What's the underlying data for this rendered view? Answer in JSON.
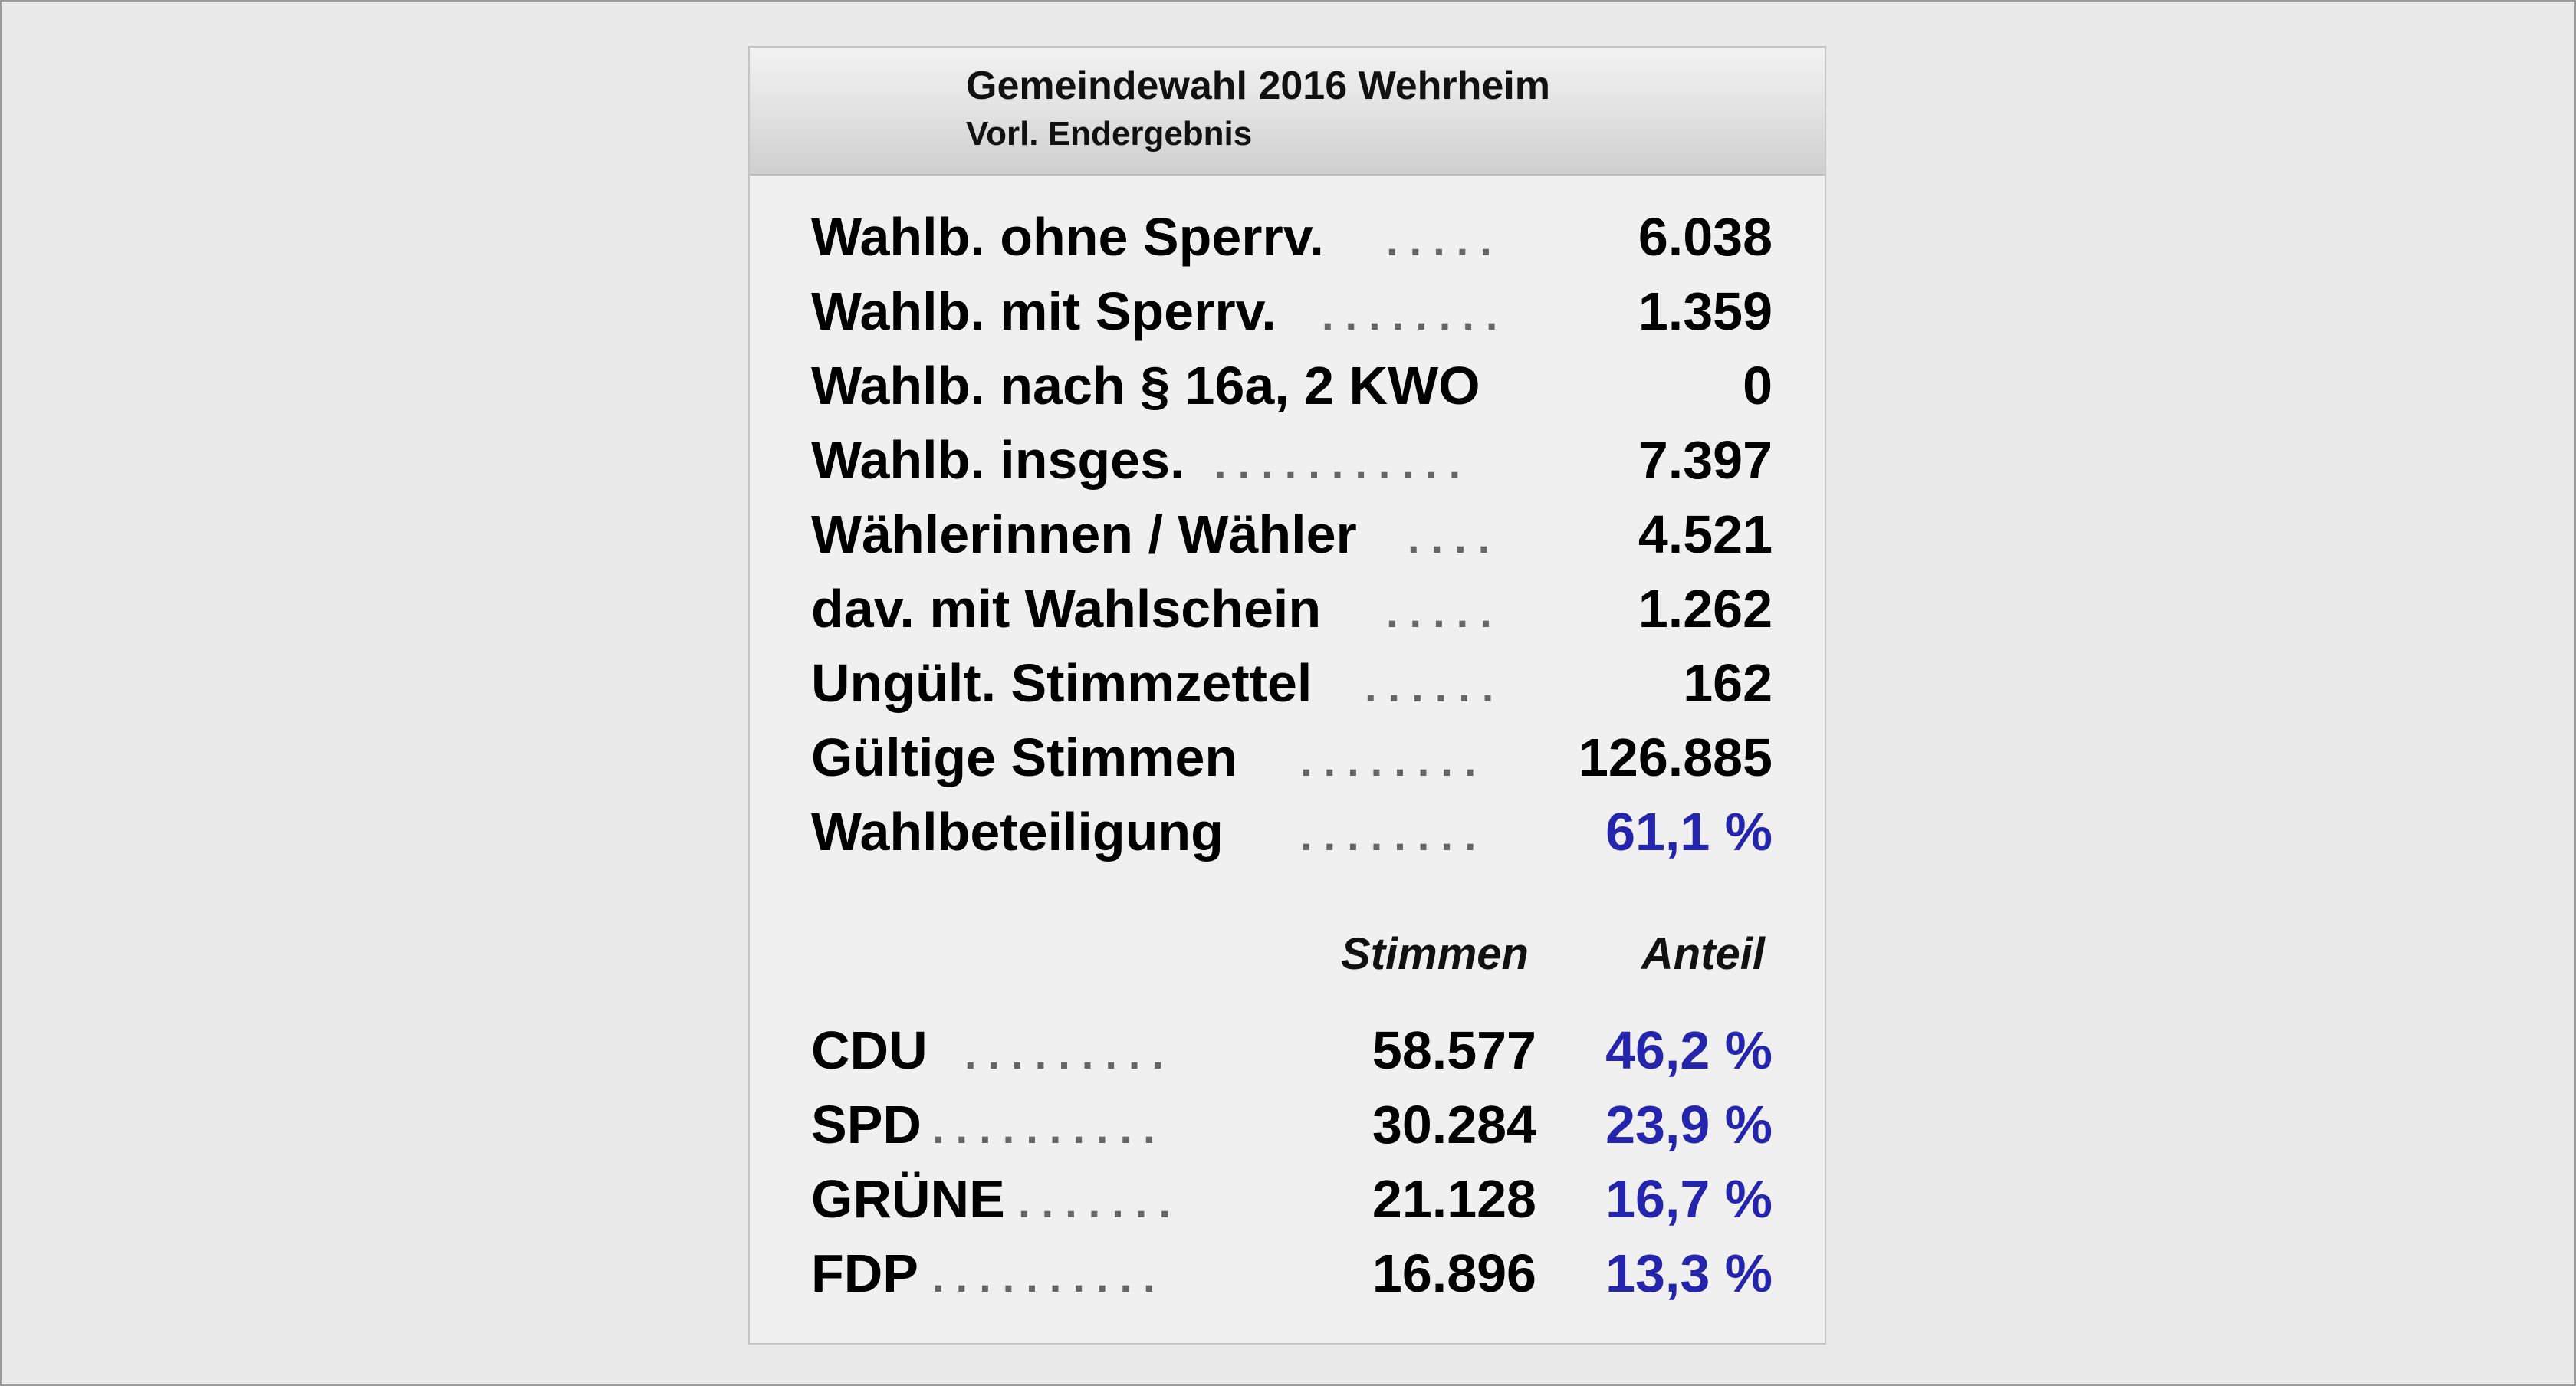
{
  "header": {
    "title": "Gemeindewahl 2016 Wehrheim",
    "subtitle": "Vorl. Endergebnis"
  },
  "stats": [
    {
      "label": "Wahlb. ohne Sperrv.",
      "dots": ".....",
      "value": "6.038"
    },
    {
      "label": "Wahlb. mit Sperrv.",
      "dots": "........",
      "value": "1.359"
    },
    {
      "label": "Wahlb. nach § 16a, 2 KWO",
      "dots": "",
      "value": "0"
    },
    {
      "label": "Wahlb. insges.",
      "dots": "...........",
      "value": "7.397"
    },
    {
      "label": "Wählerinnen / Wähler",
      "dots": "....",
      "value": "4.521"
    },
    {
      "label": "dav. mit Wahlschein",
      "dots": ".....",
      "value": "1.262"
    },
    {
      "label": "Ungült. Stimmzettel",
      "dots": "......",
      "value": "162"
    },
    {
      "label": "Gültige Stimmen",
      "dots": "........",
      "value": "126.885"
    },
    {
      "label": "Wahlbeteiligung",
      "dots": "........",
      "value": "61,1 %"
    }
  ],
  "results": {
    "col_votes": "Stimmen",
    "col_share": "Anteil",
    "parties": [
      {
        "name": "CDU",
        "dots": ".........",
        "votes": "58.577",
        "share": "46,2 %"
      },
      {
        "name": "SPD",
        "dots": "..........",
        "votes": "30.284",
        "share": "23,9 %"
      },
      {
        "name": "GRÜNE",
        "dots": ".......",
        "votes": "21.128",
        "share": "16,7 %"
      },
      {
        "name": "FDP",
        "dots": "..........",
        "votes": "16.896",
        "share": "13,3 %"
      }
    ]
  },
  "colors": {
    "percentage": "#2424ad",
    "text": "#000000",
    "background": "#e9e9e9",
    "panel": "#f0f0f0"
  }
}
